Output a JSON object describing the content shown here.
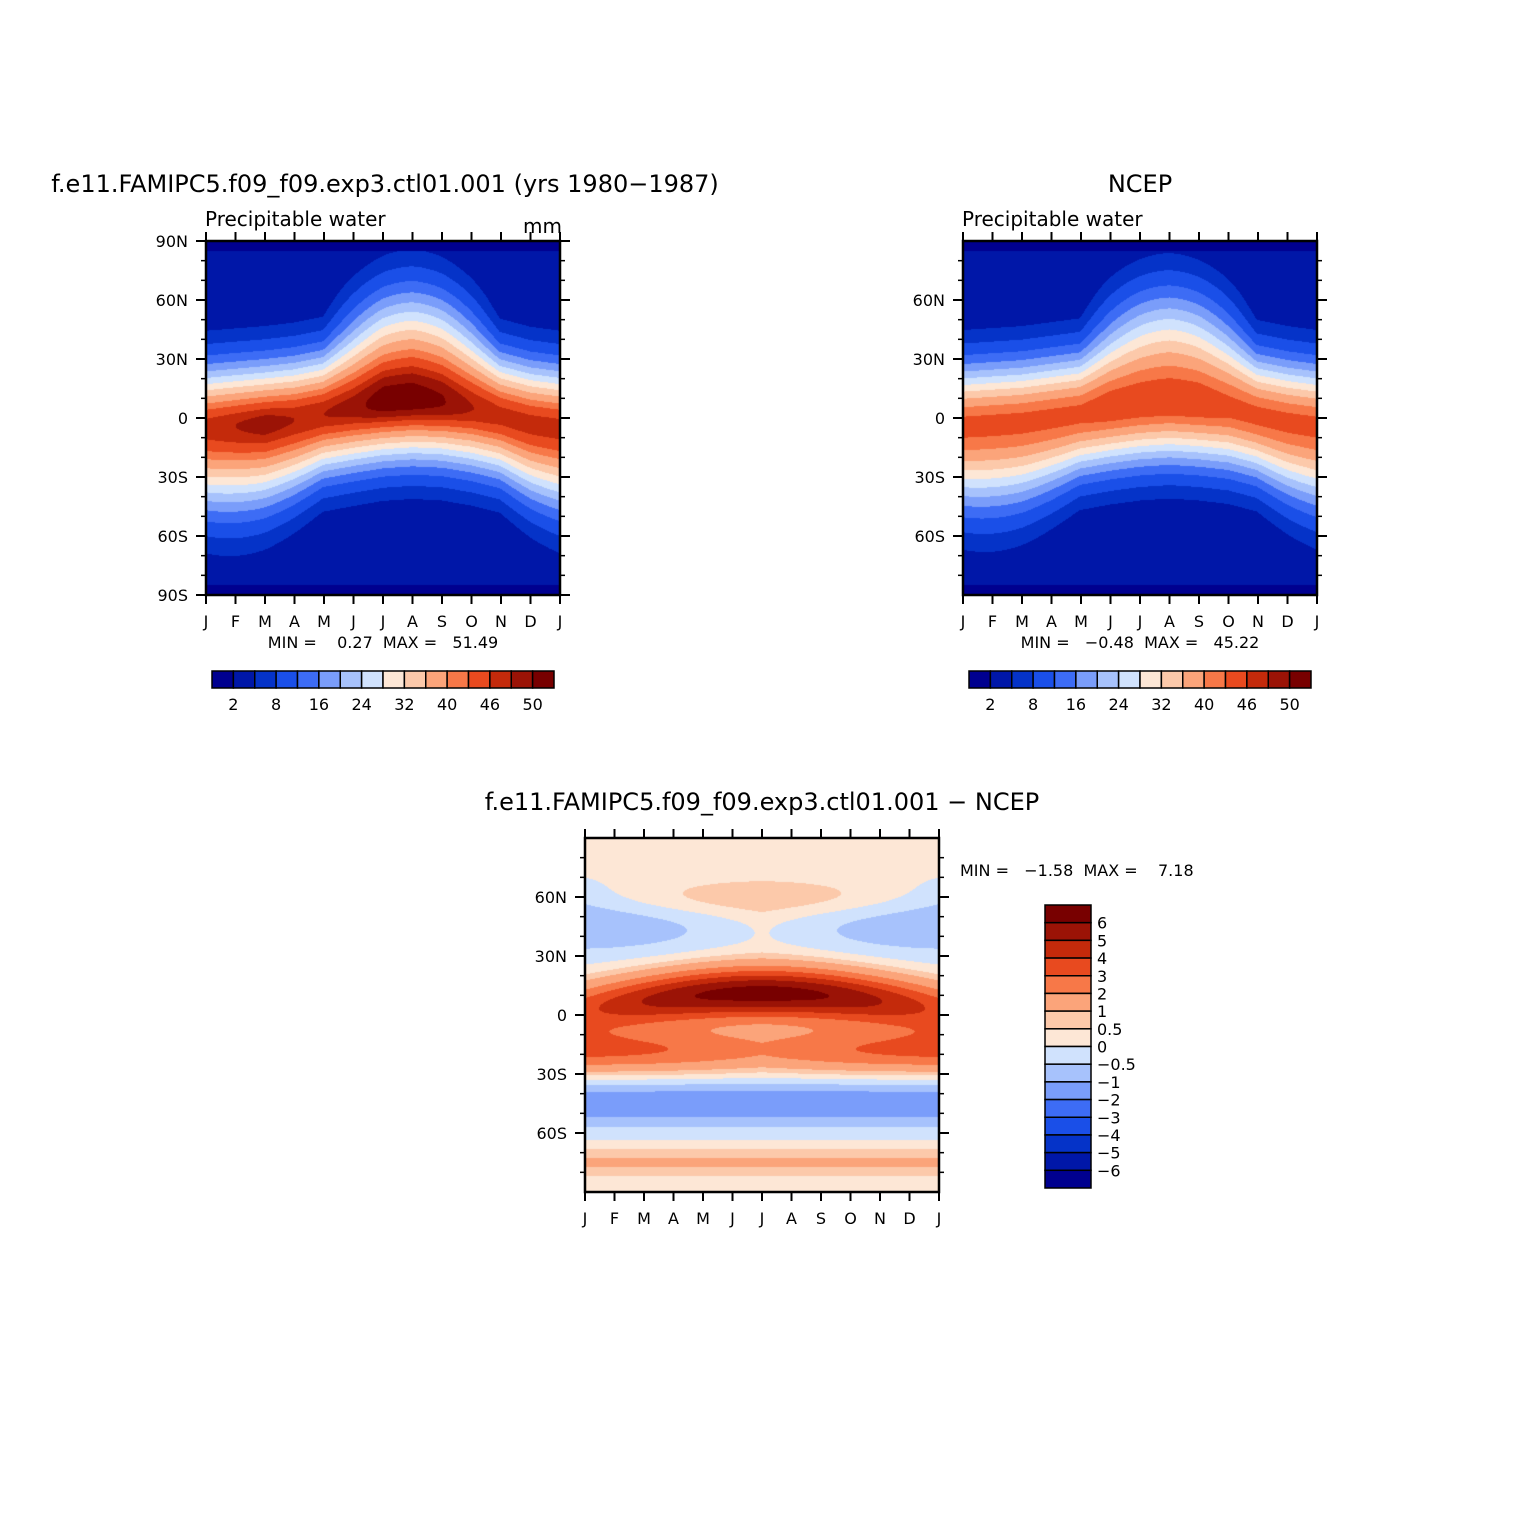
{
  "months": [
    "J",
    "F",
    "M",
    "A",
    "M",
    "J",
    "J",
    "A",
    "S",
    "O",
    "N",
    "D",
    "J"
  ],
  "panels": [
    {
      "id": "model",
      "title": "f.e11.FAMIPC5.f09_f09.exp3.ctl01.001 (yrs 1980−1987)",
      "left_label": "Precipitable water",
      "right_label": "mm",
      "y_ticks": [
        "90N",
        "60N",
        "30N",
        "0",
        "30S",
        "60S",
        "90S"
      ],
      "stats": "MIN =    0.27  MAX =   51.49",
      "colorbar_labels": [
        "2",
        "8",
        "16",
        "24",
        "32",
        "40",
        "46",
        "50"
      ]
    },
    {
      "id": "ncep",
      "title": "NCEP",
      "left_label": "Precipitable water",
      "right_label": "",
      "y_ticks": [
        "60N",
        "30N",
        "0",
        "30S",
        "60S"
      ],
      "stats": "MIN =   −0.48  MAX =   45.22",
      "colorbar_labels": [
        "2",
        "8",
        "16",
        "24",
        "32",
        "40",
        "46",
        "50"
      ]
    },
    {
      "id": "diff",
      "title": "f.e11.FAMIPC5.f09_f09.exp3.ctl01.001 − NCEP",
      "y_ticks": [
        "60N",
        "30N",
        "0",
        "30S",
        "60S"
      ],
      "stats": "MIN =   −1.58  MAX =    7.18",
      "colorbar_labels": [
        "6",
        "5",
        "4",
        "3",
        "2",
        "1",
        "0.5",
        "0",
        "−0.5",
        "−1",
        "−2",
        "−3",
        "−4",
        "−5",
        "−6"
      ]
    }
  ],
  "chart_data": [
    {
      "type": "heatmap",
      "title": "f.e11.FAMIPC5.f09_f09.exp3.ctl01.001 (yrs 1980−1987)",
      "subtitle": "Precipitable water",
      "units": "mm",
      "x": [
        "J",
        "F",
        "M",
        "A",
        "M",
        "J",
        "J",
        "A",
        "S",
        "O",
        "N",
        "D",
        "J"
      ],
      "y_ticks": [
        "90N",
        "60N",
        "30N",
        "0",
        "30S",
        "60S",
        "90S"
      ],
      "ylim": [
        -90,
        90
      ],
      "contour_levels": [
        2,
        5,
        8,
        12,
        16,
        20,
        24,
        28,
        32,
        36,
        40,
        43,
        46,
        48,
        50
      ],
      "zmin": 0.27,
      "zmax": 51.49,
      "peak_lat_by_month": [
        -5,
        -4,
        -3,
        -1,
        2,
        5,
        8,
        9,
        8,
        5,
        1,
        -3,
        -5
      ],
      "peak_value_by_month": [
        47,
        48,
        49,
        48,
        48,
        49,
        51,
        51,
        50,
        48,
        47,
        47,
        47
      ]
    },
    {
      "type": "heatmap",
      "title": "NCEP",
      "subtitle": "Precipitable water",
      "x": [
        "J",
        "F",
        "M",
        "A",
        "M",
        "J",
        "J",
        "A",
        "S",
        "O",
        "N",
        "D",
        "J"
      ],
      "y_ticks": [
        "60N",
        "30N",
        "0",
        "30S",
        "60S"
      ],
      "ylim": [
        -90,
        90
      ],
      "contour_levels": [
        2,
        5,
        8,
        12,
        16,
        20,
        24,
        28,
        32,
        36,
        40,
        43,
        46,
        48,
        50
      ],
      "zmin": -0.48,
      "zmax": 45.22,
      "peak_lat_by_month": [
        -4,
        -3,
        -2,
        0,
        2,
        5,
        7,
        8,
        7,
        5,
        1,
        -2,
        -4
      ],
      "peak_value_by_month": [
        44,
        44,
        44,
        44,
        44,
        45,
        45,
        45,
        45,
        44,
        44,
        44,
        44
      ]
    },
    {
      "type": "heatmap",
      "title": "f.e11.FAMIPC5.f09_f09.exp3.ctl01.001 − NCEP",
      "x": [
        "J",
        "F",
        "M",
        "A",
        "M",
        "J",
        "J",
        "A",
        "S",
        "O",
        "N",
        "D",
        "J"
      ],
      "y_ticks": [
        "60N",
        "30N",
        "0",
        "30S",
        "60S"
      ],
      "ylim": [
        -90,
        90
      ],
      "contour_levels": [
        -6,
        -5,
        -4,
        -3,
        -2,
        -1,
        -0.5,
        0,
        0.5,
        1,
        2,
        3,
        4,
        5,
        6
      ],
      "zmin": -1.58,
      "zmax": 7.18
    }
  ],
  "colors": {
    "precip_scale": [
      "#00008f",
      "#0017a8",
      "#0533c8",
      "#1a4fe8",
      "#3d6cf5",
      "#7a9dfa",
      "#a7c2fc",
      "#d0e2fd",
      "#fde7d6",
      "#fcc9aa",
      "#fba47a",
      "#f77848",
      "#e84a1f",
      "#c42a0b",
      "#9b1306",
      "#780000"
    ],
    "diff_scale": [
      "#00008f",
      "#0017a8",
      "#0533c8",
      "#1a4fe8",
      "#3d6cf5",
      "#7a9dfa",
      "#a7c2fc",
      "#d0e2fd",
      "#fde7d6",
      "#fcc9aa",
      "#fba47a",
      "#f77848",
      "#e84a1f",
      "#c42a0b",
      "#9b1306",
      "#780000"
    ]
  }
}
